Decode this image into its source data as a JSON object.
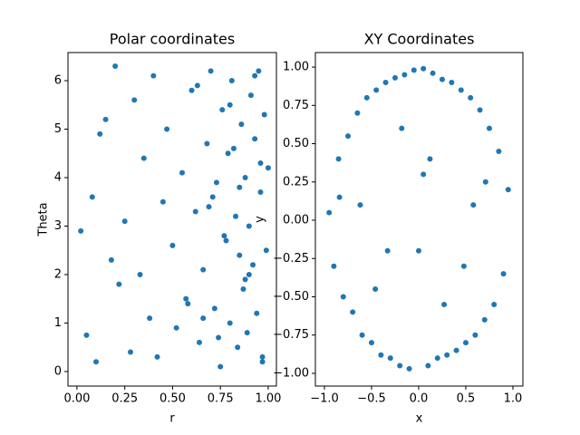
{
  "chart_data": [
    {
      "type": "scatter",
      "title": "Polar coordinates",
      "xlabel": "r",
      "ylabel": "Theta",
      "color": "#1f77b4",
      "x": [
        0.02,
        0.05,
        0.08,
        0.1,
        0.12,
        0.15,
        0.18,
        0.2,
        0.22,
        0.25,
        0.28,
        0.3,
        0.33,
        0.35,
        0.38,
        0.4,
        0.42,
        0.45,
        0.47,
        0.5,
        0.52,
        0.55,
        0.57,
        0.6,
        0.62,
        0.64,
        0.66,
        0.68,
        0.7,
        0.72,
        0.73,
        0.75,
        0.76,
        0.78,
        0.79,
        0.8,
        0.81,
        0.83,
        0.84,
        0.85,
        0.86,
        0.87,
        0.88,
        0.89,
        0.9,
        0.91,
        0.92,
        0.93,
        0.94,
        0.95,
        0.96,
        0.97,
        0.98,
        0.99,
        1.0,
        0.58,
        0.63,
        0.69,
        0.74,
        0.77,
        0.82,
        0.88,
        0.93,
        0.97,
        0.71,
        0.8,
        0.9,
        0.96,
        0.66,
        0.85
      ],
      "y": [
        2.9,
        0.75,
        3.6,
        0.2,
        4.9,
        5.2,
        2.3,
        6.3,
        1.8,
        3.1,
        0.4,
        5.6,
        2.0,
        4.4,
        1.1,
        6.1,
        0.3,
        3.5,
        5.0,
        2.6,
        0.9,
        4.1,
        1.5,
        5.8,
        3.3,
        0.6,
        2.1,
        4.7,
        6.2,
        1.3,
        3.9,
        0.1,
        5.4,
        2.7,
        4.5,
        1.0,
        6.0,
        3.2,
        0.5,
        2.4,
        5.1,
        1.7,
        4.0,
        0.8,
        3.0,
        5.7,
        2.2,
        4.8,
        1.2,
        6.2,
        3.7,
        0.3,
        5.3,
        2.5,
        4.2,
        1.4,
        5.9,
        3.4,
        0.7,
        2.8,
        4.6,
        1.9,
        6.1,
        0.2,
        3.6,
        5.5,
        2.0,
        4.3,
        1.1,
        3.8
      ],
      "xlim": [
        -0.047,
        1.043
      ],
      "ylim": [
        -0.3,
        6.58
      ],
      "xticks": [
        {
          "value": 0,
          "label": "0.00"
        },
        {
          "value": 0.25,
          "label": "0.25"
        },
        {
          "value": 0.5,
          "label": "0.50"
        },
        {
          "value": 0.75,
          "label": "0.75"
        },
        {
          "value": 1,
          "label": "1.00"
        }
      ],
      "yticks": [
        0,
        1,
        2,
        3,
        4,
        5,
        6
      ]
    },
    {
      "type": "scatter",
      "title": "XY Coordinates",
      "xlabel": "x",
      "ylabel": "y",
      "color": "#1f77b4",
      "x": [
        -0.95,
        -0.9,
        -0.85,
        -0.8,
        -0.75,
        -0.7,
        -0.65,
        -0.6,
        -0.55,
        -0.5,
        -0.45,
        -0.4,
        -0.35,
        -0.3,
        -0.25,
        -0.2,
        -0.15,
        -0.1,
        -0.05,
        0.0,
        0.05,
        0.1,
        0.15,
        0.2,
        0.25,
        0.3,
        0.35,
        0.4,
        0.45,
        0.5,
        0.55,
        0.6,
        0.65,
        0.7,
        0.75,
        0.8,
        0.85,
        0.9,
        0.95,
        -0.62,
        -0.33,
        0.12,
        0.48,
        0.71,
        -0.84,
        -0.18,
        0.27,
        0.58,
        -0.46,
        0.05
      ],
      "y": [
        0.05,
        -0.3,
        0.4,
        -0.5,
        0.55,
        -0.6,
        0.7,
        -0.75,
        0.8,
        -0.8,
        0.85,
        -0.88,
        0.9,
        -0.9,
        0.93,
        -0.95,
        0.95,
        -0.97,
        0.98,
        -0.2,
        0.99,
        -0.95,
        0.96,
        -0.9,
        0.92,
        -0.88,
        0.9,
        -0.85,
        0.85,
        -0.8,
        0.8,
        -0.75,
        0.72,
        -0.65,
        0.6,
        -0.55,
        0.45,
        -0.35,
        0.2,
        0.1,
        -0.2,
        0.4,
        -0.3,
        0.25,
        0.15,
        0.6,
        -0.55,
        0.1,
        -0.45,
        0.3
      ],
      "xlim": [
        -1.096,
        1.106
      ],
      "ylim": [
        -1.083,
        1.095
      ],
      "xticks": [
        {
          "value": -1,
          "label": "−1.0"
        },
        {
          "value": -0.5,
          "label": "−0.5"
        },
        {
          "value": 0,
          "label": "0.0"
        },
        {
          "value": 0.5,
          "label": "0.5"
        },
        {
          "value": 1,
          "label": "1.0"
        }
      ],
      "yticks": [
        {
          "value": -1,
          "label": "−1.00"
        },
        {
          "value": -0.75,
          "label": "−0.75"
        },
        {
          "value": -0.5,
          "label": "−0.50"
        },
        {
          "value": -0.25,
          "label": "−0.25"
        },
        {
          "value": 0,
          "label": "0.00"
        },
        {
          "value": 0.25,
          "label": "0.25"
        },
        {
          "value": 0.5,
          "label": "0.50"
        },
        {
          "value": 0.75,
          "label": "0.75"
        },
        {
          "value": 1,
          "label": "1.00"
        }
      ]
    }
  ]
}
